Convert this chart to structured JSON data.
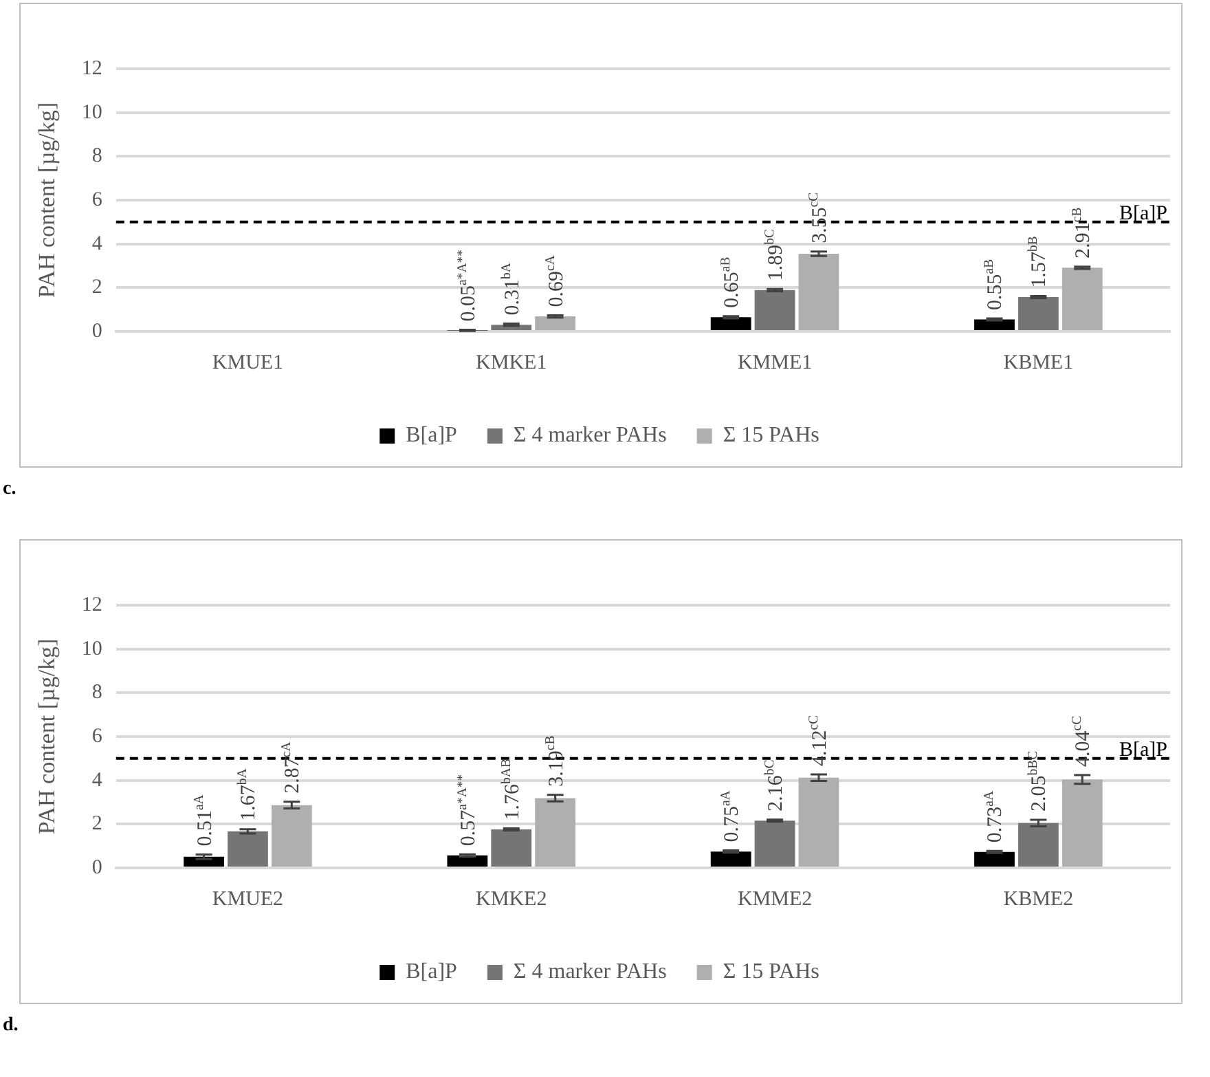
{
  "chart_data": [
    {
      "type": "bar",
      "ylabel": "PAH content [µg/kg]",
      "categories": [
        "KMUE1",
        "KMKE1",
        "KMME1",
        "KBME1"
      ],
      "ylim": [
        0,
        12
      ],
      "yticks": [
        0,
        2,
        4,
        6,
        8,
        10,
        12
      ],
      "grid": "y",
      "legend": "bottom",
      "annotations": [
        "c."
      ],
      "ref_lines": [
        {
          "axis": "y",
          "value": 5,
          "label": "B[a]P",
          "color": "#000000",
          "line_style": "dashed"
        }
      ],
      "series": [
        {
          "name": "B[a]P",
          "color": "#000000",
          "values": [
            0,
            0.05,
            0.65,
            0.55
          ],
          "errors": [
            null,
            0.03,
            0.05,
            0.05
          ],
          "value_labels": [
            null,
            "0.05$^{a*A**}$",
            "0.65$^{aB}$",
            "0.55$^{aB}$"
          ]
        },
        {
          "name": "Σ 4 marker PAHs",
          "color": "#757575",
          "values": [
            0,
            0.31,
            1.89,
            1.57
          ],
          "errors": [
            null,
            0.05,
            0.05,
            0.05
          ],
          "value_labels": [
            null,
            "0.31$^{bA}$",
            "1.89$^{bC}$",
            "1.57$^{bB}$"
          ]
        },
        {
          "name": "Σ 15 PAHs",
          "color": "#afafaf",
          "values": [
            0,
            0.69,
            3.55,
            2.91
          ],
          "errors": [
            null,
            0.05,
            0.1,
            0.05
          ],
          "value_labels": [
            null,
            "0.69$^{cA}$",
            "3.55$^{cC}$",
            "2.91$^{cB}$"
          ]
        }
      ]
    },
    {
      "type": "bar",
      "ylabel": "PAH content [µg/kg]",
      "categories": [
        "KMUE2",
        "KMKE2",
        "KMME2",
        "KBME2"
      ],
      "ylim": [
        0,
        12
      ],
      "yticks": [
        0,
        2,
        4,
        6,
        8,
        10,
        12
      ],
      "grid": "y",
      "legend": "bottom",
      "annotations": [
        "d."
      ],
      "ref_lines": [
        {
          "axis": "y",
          "value": 5,
          "label": "B[a]P",
          "color": "#000000",
          "line_style": "dashed"
        }
      ],
      "series": [
        {
          "name": "B[a]P",
          "color": "#000000",
          "values": [
            0.51,
            0.57,
            0.75,
            0.73
          ],
          "errors": [
            0.1,
            0.05,
            0.05,
            0.05
          ],
          "value_labels": [
            "0.51$^{aA}$",
            "0.57$^{a*A**}$",
            "0.75$^{aA}$",
            "0.73$^{aA}$"
          ]
        },
        {
          "name": "Σ 4 marker PAHs",
          "color": "#757575",
          "values": [
            1.67,
            1.76,
            2.16,
            2.05
          ],
          "errors": [
            0.1,
            0.05,
            0.05,
            0.15
          ],
          "value_labels": [
            "1.67$^{bA}$",
            "1.76$^{bAB}$",
            "2.16$^{bC}$",
            "2.05$^{bBC}$"
          ]
        },
        {
          "name": "Σ 15 PAHs",
          "color": "#afafaf",
          "values": [
            2.87,
            3.19,
            4.12,
            4.04
          ],
          "errors": [
            0.15,
            0.15,
            0.15,
            0.2
          ],
          "value_labels": [
            "2.87$^{cA}$",
            "3.19$^{cB}$",
            "4.12$^{cC}$",
            "4.04$^{cC}$"
          ]
        }
      ]
    }
  ]
}
